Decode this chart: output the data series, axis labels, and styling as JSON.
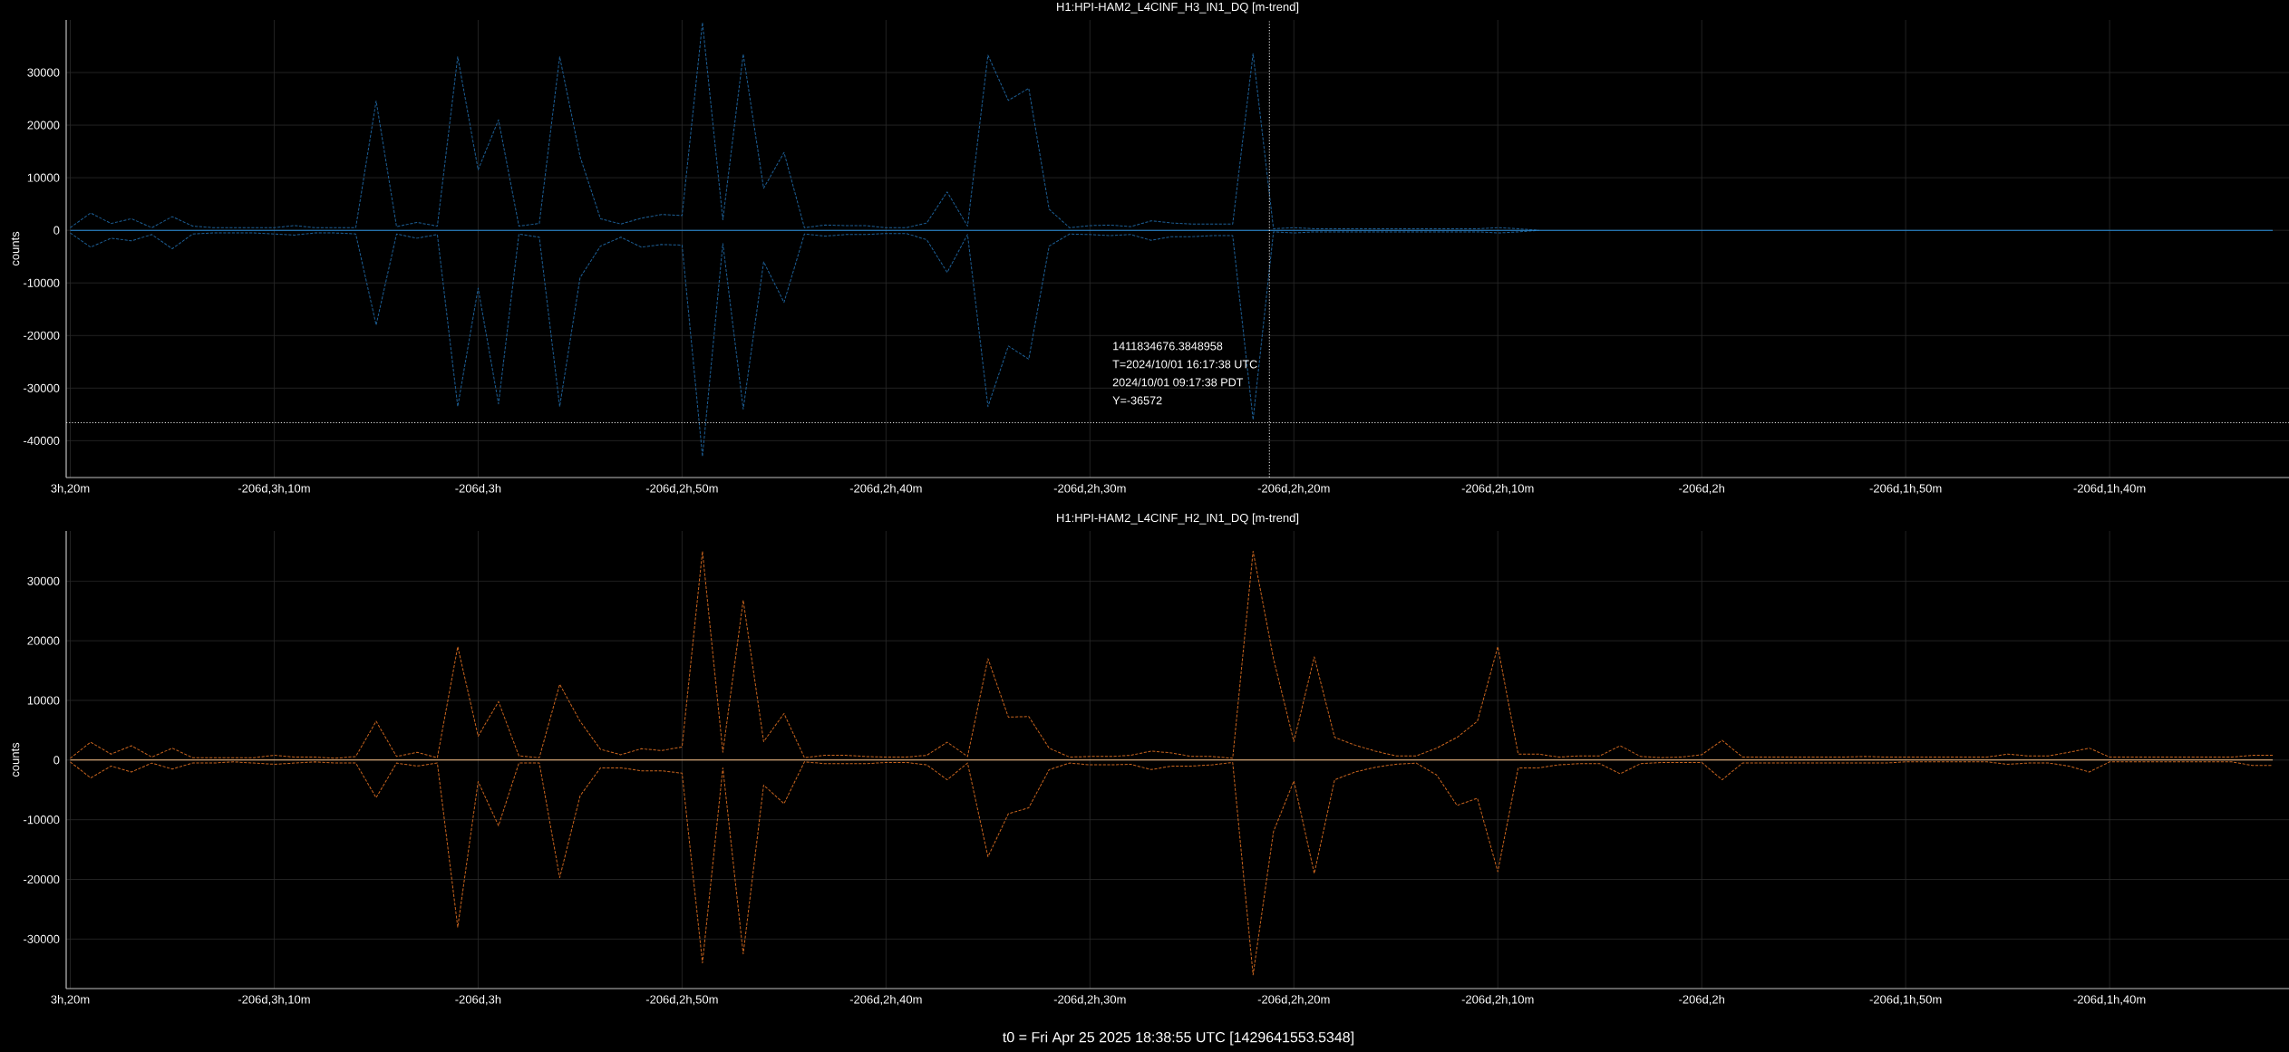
{
  "chart_data": [
    {
      "type": "line",
      "title": "H1:HPI-HAM2_L4CINF_H3_IN1_DQ [m-trend]",
      "ylabel": "counts",
      "categories": [
        "3h,20m",
        null,
        null,
        null,
        null,
        null,
        null,
        null,
        null,
        null,
        "-206d,3h,10m",
        null,
        null,
        null,
        null,
        null,
        null,
        null,
        null,
        null,
        "-206d,3h",
        null,
        null,
        null,
        null,
        null,
        null,
        null,
        null,
        null,
        "-206d,2h,50m",
        null,
        null,
        null,
        null,
        null,
        null,
        null,
        null,
        null,
        "-206d,2h,40m",
        null,
        null,
        null,
        null,
        null,
        null,
        null,
        null,
        null,
        "-206d,2h,30m",
        null,
        null,
        null,
        null,
        null,
        null,
        null,
        null,
        null,
        "-206d,2h,20m",
        null,
        null,
        null,
        null,
        null,
        null,
        null,
        null,
        null,
        "-206d,2h,10m",
        null,
        null,
        null,
        null,
        null,
        null,
        null,
        null,
        null,
        "-206d,2h",
        null,
        null,
        null,
        null,
        null,
        null,
        null,
        null,
        null,
        "-206d,1h,50m",
        null,
        null,
        null,
        null,
        null,
        null,
        null,
        null,
        null,
        "-206d,1h,40m",
        null,
        null,
        null,
        null,
        null,
        null,
        null,
        null
      ],
      "ylim": [
        -47000,
        40000
      ],
      "yticks": [
        -40000,
        -30000,
        -20000,
        -10000,
        0,
        10000,
        20000,
        30000
      ],
      "grid": true,
      "series": [
        {
          "color": "#1d5f96",
          "line_style": "dashed",
          "values": [
            500,
            3300,
            1300,
            2200,
            500,
            2600,
            800,
            500,
            500,
            500,
            500,
            900,
            500,
            500,
            500,
            24600,
            700,
            1500,
            800,
            33000,
            11500,
            21000,
            800,
            1300,
            33000,
            14000,
            2200,
            1200,
            2300,
            3000,
            2800,
            39500,
            2000,
            33500,
            8000,
            14800,
            500,
            1000,
            900,
            900,
            500,
            500,
            1400,
            7300,
            800,
            33300,
            24700,
            27000,
            4000,
            500,
            900,
            1000,
            700,
            1800,
            1400,
            1200,
            1200,
            1200,
            33600,
            300,
            500,
            300,
            300,
            300,
            300,
            300,
            300,
            300,
            300,
            300,
            500,
            300,
            0,
            null,
            null,
            null,
            null,
            null,
            null,
            null,
            null,
            null,
            null,
            null,
            null,
            null,
            null,
            null,
            null,
            null,
            null,
            null,
            null,
            null,
            null,
            null,
            null,
            null,
            null,
            null,
            null,
            null,
            null,
            null,
            null,
            null,
            null,
            null,
            null
          ]
        },
        {
          "color": "#1d5f96",
          "line_style": "dashed",
          "values": [
            -500,
            -3200,
            -1500,
            -2000,
            -800,
            -3500,
            -700,
            -500,
            -500,
            -500,
            -700,
            -900,
            -500,
            -500,
            -700,
            -18000,
            -700,
            -1500,
            -800,
            -33500,
            -11000,
            -33000,
            -700,
            -1300,
            -33500,
            -9000,
            -3000,
            -1300,
            -3200,
            -2700,
            -2800,
            -43000,
            -2500,
            -34000,
            -6000,
            -13700,
            -700,
            -1100,
            -800,
            -800,
            -600,
            -600,
            -1800,
            -8000,
            -800,
            -33500,
            -22000,
            -24500,
            -3000,
            -700,
            -800,
            -1000,
            -800,
            -1900,
            -1200,
            -1200,
            -1000,
            -1000,
            -36000,
            -300,
            -500,
            -300,
            -300,
            -300,
            -300,
            -300,
            -300,
            -300,
            -300,
            -300,
            -500,
            -300,
            0,
            null,
            null,
            null,
            null,
            null,
            null,
            null,
            null,
            null,
            null,
            null,
            null,
            null,
            null,
            null,
            null,
            null,
            null,
            null,
            null,
            null,
            null,
            null,
            null,
            null,
            null,
            null,
            null,
            null,
            null,
            null,
            null,
            null,
            null,
            null,
            null
          ]
        },
        {
          "color": "#2a8fdc",
          "line_style": "solid",
          "values": [
            0,
            0,
            0,
            0,
            0,
            0,
            0,
            0,
            0,
            0,
            0,
            0,
            0,
            0,
            0,
            0,
            0,
            0,
            0,
            0,
            0,
            0,
            0,
            0,
            0,
            0,
            0,
            0,
            0,
            0,
            0,
            0,
            0,
            0,
            0,
            0,
            0,
            0,
            0,
            0,
            0,
            0,
            0,
            0,
            0,
            0,
            0,
            0,
            0,
            0,
            0,
            0,
            0,
            0,
            0,
            0,
            0,
            0,
            0,
            0,
            0,
            0,
            0,
            0,
            0,
            0,
            0,
            0,
            0,
            0,
            0,
            0,
            0,
            0,
            0,
            0,
            0,
            0,
            0,
            0,
            0,
            0,
            0,
            0,
            0,
            0,
            0,
            0,
            0,
            0,
            0,
            0,
            0,
            0,
            0,
            0,
            0,
            0,
            0,
            0,
            0,
            0,
            0,
            0,
            0,
            0,
            0,
            0,
            0
          ]
        }
      ],
      "ref_lines": [
        {
          "axis": "y",
          "value": -36572,
          "color": "#dddddd",
          "line_style": "dotted"
        }
      ],
      "annotations": [
        "1411834676.3848958",
        "T=2024/10/01 16:17:38 UTC",
        "2024/10/01 09:17:38 PDT",
        "Y=-36572"
      ]
    },
    {
      "type": "line",
      "title": "H1:HPI-HAM2_L4CINF_H2_IN1_DQ [m-trend]",
      "ylabel": "counts",
      "categories": [
        "3h,20m",
        null,
        null,
        null,
        null,
        null,
        null,
        null,
        null,
        null,
        "-206d,3h,10m",
        null,
        null,
        null,
        null,
        null,
        null,
        null,
        null,
        null,
        "-206d,3h",
        null,
        null,
        null,
        null,
        null,
        null,
        null,
        null,
        null,
        "-206d,2h,50m",
        null,
        null,
        null,
        null,
        null,
        null,
        null,
        null,
        null,
        "-206d,2h,40m",
        null,
        null,
        null,
        null,
        null,
        null,
        null,
        null,
        null,
        "-206d,2h,30m",
        null,
        null,
        null,
        null,
        null,
        null,
        null,
        null,
        null,
        "-206d,2h,20m",
        null,
        null,
        null,
        null,
        null,
        null,
        null,
        null,
        null,
        "-206d,2h,10m",
        null,
        null,
        null,
        null,
        null,
        null,
        null,
        null,
        null,
        "-206d,2h",
        null,
        null,
        null,
        null,
        null,
        null,
        null,
        null,
        null,
        "-206d,1h,50m",
        null,
        null,
        null,
        null,
        null,
        null,
        null,
        null,
        null,
        "-206d,1h,40m",
        null,
        null,
        null,
        null,
        null,
        null,
        null,
        null
      ],
      "ylim": [
        -38300,
        38400
      ],
      "yticks": [
        -30000,
        -20000,
        -10000,
        0,
        10000,
        20000,
        30000
      ],
      "grid": true,
      "series": [
        {
          "color": "#c8641e",
          "line_style": "dashed",
          "values": [
            300,
            3000,
            1000,
            2400,
            500,
            2000,
            400,
            400,
            400,
            400,
            800,
            500,
            500,
            300,
            600,
            6500,
            600,
            1300,
            400,
            19000,
            4000,
            9800,
            700,
            400,
            12700,
            6500,
            1800,
            900,
            1900,
            1600,
            2200,
            35000,
            1300,
            26800,
            3100,
            7800,
            400,
            800,
            800,
            600,
            500,
            500,
            800,
            3000,
            600,
            17000,
            7200,
            7300,
            2000,
            500,
            600,
            600,
            800,
            1500,
            1200,
            600,
            600,
            300,
            35000,
            17000,
            3100,
            17300,
            3800,
            2500,
            1500,
            700,
            700,
            2000,
            3800,
            6500,
            19000,
            1000,
            1000,
            500,
            700,
            700,
            2400,
            600,
            400,
            500,
            900,
            3300,
            500,
            500,
            500,
            500,
            500,
            500,
            600,
            500,
            500,
            500,
            500,
            500,
            500,
            1000,
            700,
            700,
            1300,
            2000,
            500,
            500,
            500,
            500,
            500,
            500,
            500,
            800,
            800
          ]
        },
        {
          "color": "#c8641e",
          "line_style": "dashed",
          "values": [
            -300,
            -3000,
            -1000,
            -2000,
            -500,
            -1500,
            -500,
            -500,
            -300,
            -500,
            -700,
            -500,
            -300,
            -500,
            -500,
            -6300,
            -500,
            -1000,
            -500,
            -28000,
            -3600,
            -11000,
            -500,
            -500,
            -19700,
            -6000,
            -1300,
            -1300,
            -1800,
            -1800,
            -2200,
            -34000,
            -1300,
            -32500,
            -4200,
            -7300,
            -300,
            -600,
            -600,
            -600,
            -400,
            -400,
            -800,
            -3300,
            -500,
            -16200,
            -9000,
            -8000,
            -1600,
            -500,
            -800,
            -800,
            -700,
            -1600,
            -1000,
            -1000,
            -800,
            -400,
            -36000,
            -12000,
            -3500,
            -19000,
            -3300,
            -2000,
            -1200,
            -700,
            -500,
            -2500,
            -7600,
            -6400,
            -18700,
            -1300,
            -1300,
            -800,
            -600,
            -600,
            -2300,
            -600,
            -400,
            -400,
            -400,
            -3300,
            -500,
            -500,
            -500,
            -500,
            -500,
            -500,
            -500,
            -500,
            -300,
            -300,
            -300,
            -300,
            -300,
            -700,
            -500,
            -500,
            -1000,
            -2000,
            -300,
            -300,
            -300,
            -300,
            -300,
            -300,
            -300,
            -900,
            -900
          ]
        },
        {
          "color": "#ffc48a",
          "line_style": "solid",
          "values": [
            0,
            0,
            0,
            0,
            0,
            0,
            0,
            0,
            0,
            0,
            0,
            0,
            0,
            0,
            0,
            0,
            0,
            0,
            0,
            0,
            0,
            0,
            0,
            0,
            0,
            0,
            0,
            0,
            0,
            0,
            0,
            0,
            0,
            0,
            0,
            0,
            0,
            0,
            0,
            0,
            0,
            0,
            0,
            0,
            0,
            0,
            0,
            0,
            0,
            0,
            0,
            0,
            0,
            0,
            0,
            0,
            0,
            0,
            0,
            0,
            0,
            0,
            0,
            0,
            0,
            0,
            0,
            0,
            0,
            0,
            0,
            0,
            0,
            0,
            0,
            0,
            0,
            0,
            0,
            0,
            0,
            0,
            0,
            0,
            0,
            0,
            0,
            0,
            0,
            0,
            0,
            0,
            0,
            0,
            0,
            0,
            0,
            0,
            0,
            0,
            0,
            0,
            0,
            0,
            0,
            0,
            0,
            0,
            0
          ]
        }
      ],
      "annotations": [
        "t0 = Fri Apr 25 2025 18:38:55 UTC [1429641553.5348]"
      ]
    }
  ]
}
